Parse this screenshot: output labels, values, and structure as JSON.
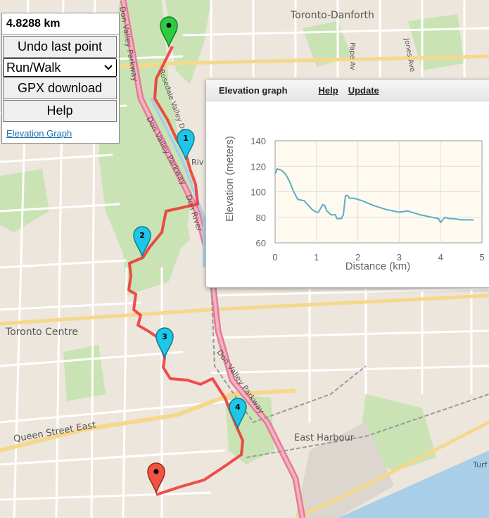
{
  "panel": {
    "distance": "4.8288 km",
    "undo_label": "Undo last point",
    "activity_value": "Run/Walk",
    "gpx_label": "GPX download",
    "help_label": "Help",
    "elevation_link": "Elevation Graph"
  },
  "map": {
    "labels": {
      "toronto_danforth": "Toronto-Danforth",
      "toronto_centre": "Toronto Centre",
      "queen_street": "Queen Street East",
      "east_harbour": "East Harbour",
      "dvp_top": "Don Valley Parkway",
      "dvp_mid": "Don Valley Parkway",
      "dvp_bottom": "Don Valley Parkway",
      "don_river": "Don River",
      "bayview": "Bayview Ave",
      "rosedale": "Rosedale Valley Drive",
      "pape": "Pape Av",
      "jones": "Jones Ave",
      "turf": "Turf",
      "riv": "Riv"
    },
    "markers": [
      {
        "label": "1"
      },
      {
        "label": "2"
      },
      {
        "label": "3"
      },
      {
        "label": "4"
      }
    ],
    "colors": {
      "route": "#f03030",
      "start_marker": "#2ecc40",
      "end_marker": "#f0533f",
      "mid_marker": "#1ec6e8"
    }
  },
  "elevation": {
    "title": "Elevation graph",
    "help_label": "Help",
    "update_label": "Update",
    "chart_data": {
      "type": "line",
      "xlabel": "Distance (km)",
      "ylabel": "Elevation (meters)",
      "xlim": [
        0,
        5
      ],
      "ylim": [
        60,
        140
      ],
      "x_ticks": [
        "0",
        "1",
        "2",
        "3",
        "4",
        "5"
      ],
      "y_ticks": [
        "60",
        "80",
        "100",
        "120",
        "140"
      ],
      "grid": true,
      "series": [
        {
          "color": "#5aaec6",
          "x": [
            0,
            0.05,
            0.15,
            0.25,
            0.35,
            0.45,
            0.55,
            0.7,
            0.9,
            1.0,
            1.05,
            1.15,
            1.2,
            1.25,
            1.35,
            1.45,
            1.5,
            1.6,
            1.65,
            1.7,
            1.75,
            1.8,
            1.9,
            2.1,
            2.4,
            2.7,
            3.0,
            3.2,
            3.5,
            3.8,
            3.95,
            4.0,
            4.1,
            4.2,
            4.3,
            4.5,
            4.8
          ],
          "y": [
            114,
            118,
            117,
            114,
            108,
            100,
            94,
            93,
            86,
            84,
            84,
            90,
            89,
            85,
            82,
            82,
            79,
            79,
            82,
            97,
            97,
            95,
            95,
            93,
            89,
            86,
            84,
            85,
            82,
            80,
            79,
            76,
            80,
            79,
            79,
            78,
            78
          ]
        }
      ]
    }
  }
}
